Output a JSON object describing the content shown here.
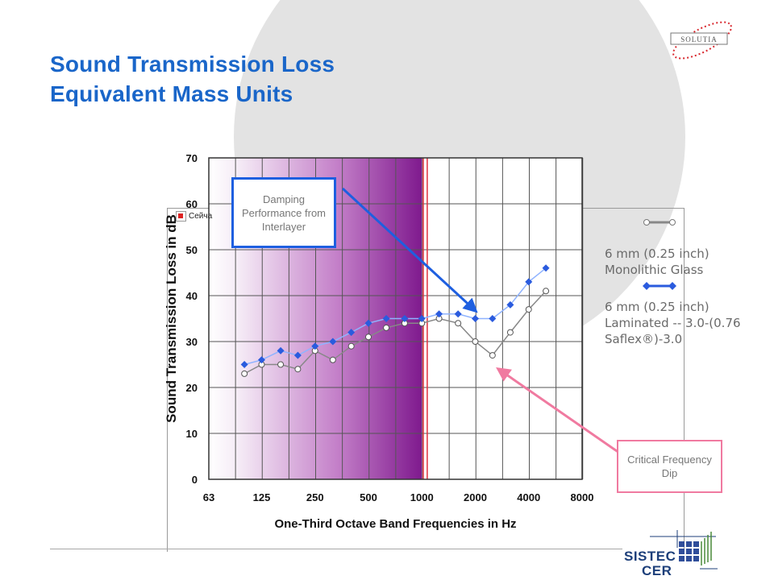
{
  "slide": {
    "title_line1": "Sound Transmission Loss",
    "title_line2": "Equivalent Mass Units",
    "brand_logo_text": "SOLUTIA",
    "footer_logo_line1": "SISTEC",
    "footer_logo_line2": "CER",
    "broken_image_caption": "Сейча"
  },
  "callouts": {
    "damping": "Damping Performance from Interlayer",
    "dip": "Critical Frequency Dip"
  },
  "legend": {
    "series1_label": "6 mm (0.25 inch) Monolithic Glass",
    "series2_label": "6 mm (0.25 inch) Laminated -- 3.0-(0.76 Saflex®)-3.0"
  },
  "colors": {
    "title": "#1a66c9",
    "monolithic": "#888888",
    "laminated": "#2a5bde",
    "laminated_line": "#8fb3ff",
    "damping_arrow": "#1e5fe0",
    "dip_arrow": "#f07aa0",
    "band_light": "#f5ecf6",
    "band_dark": "#7f1a8e",
    "critical_line": "#e0303c"
  },
  "chart_data": {
    "type": "line",
    "xlabel": "One-Third Octave Band Frequencies in Hz",
    "ylabel": "Sound Transmission Loss in dB",
    "x_scale": "log2",
    "xlim": [
      63,
      8000
    ],
    "ylim": [
      0,
      70
    ],
    "xticks": [
      63,
      125,
      250,
      500,
      1000,
      2000,
      4000,
      8000
    ],
    "yticks": [
      0,
      10,
      20,
      30,
      40,
      50,
      60,
      70
    ],
    "grid": true,
    "x": [
      100,
      125,
      160,
      200,
      250,
      315,
      400,
      500,
      630,
      800,
      1000,
      1250,
      1600,
      2000,
      2500,
      3150,
      4000,
      5000
    ],
    "series": [
      {
        "name": "6 mm (0.25 inch) Monolithic Glass",
        "marker": "open-circle",
        "values": [
          23,
          25,
          25,
          24,
          28,
          26,
          29,
          31,
          33,
          34,
          34,
          35,
          34,
          30,
          27,
          32,
          37,
          41
        ]
      },
      {
        "name": "6 mm (0.25 inch) Laminated -- 3.0-(0.76 Saflex®)-3.0",
        "marker": "filled-diamond",
        "values": [
          25,
          26,
          28,
          27,
          29,
          30,
          32,
          34,
          35,
          35,
          35,
          36,
          36,
          35,
          35,
          38,
          43,
          46
        ]
      }
    ],
    "shaded_region": {
      "x_from": 63,
      "x_to": 1000
    },
    "critical_line_x": 1050
  }
}
